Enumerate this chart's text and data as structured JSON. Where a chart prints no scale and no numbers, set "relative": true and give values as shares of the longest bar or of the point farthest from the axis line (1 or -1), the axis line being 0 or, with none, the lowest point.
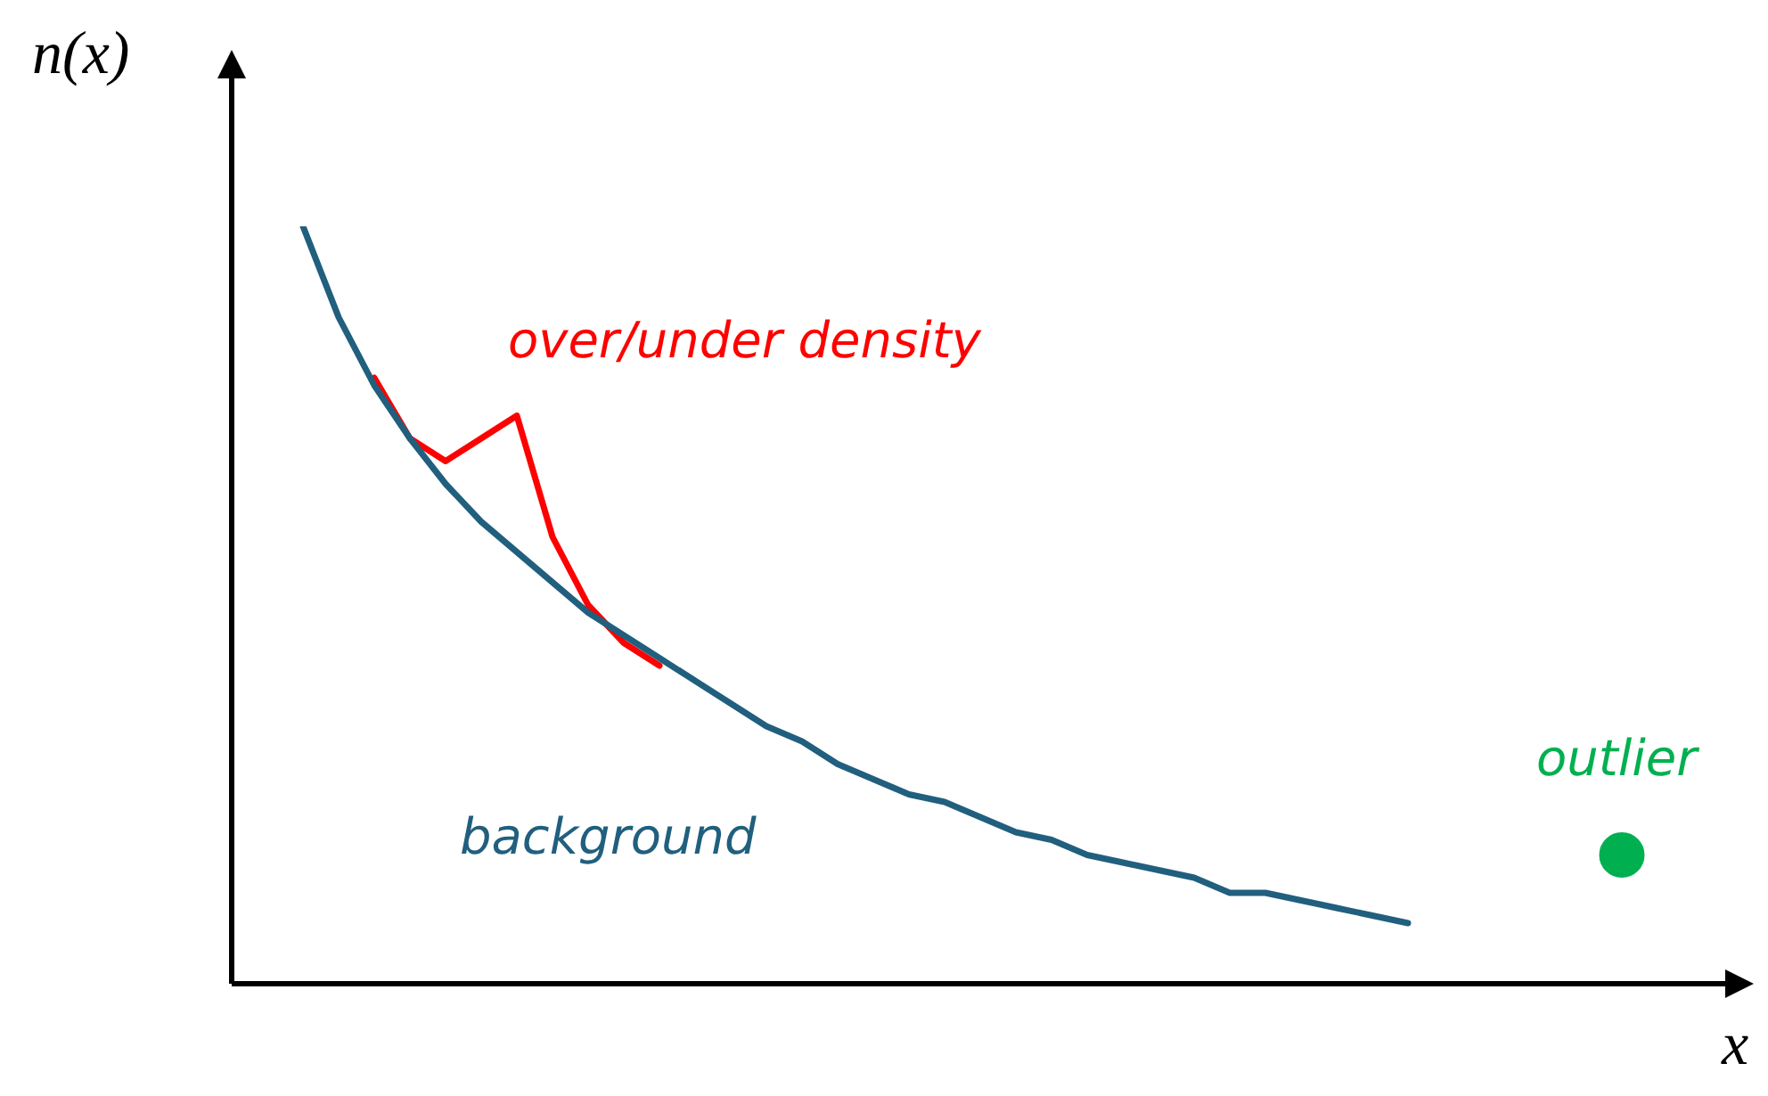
{
  "chart_data": {
    "type": "line",
    "relative": true,
    "xlabel": "x",
    "ylabel": "n(x)",
    "marker": "none",
    "line_style": "solid",
    "legend": false,
    "tick_labels": false,
    "categories": [
      null,
      null,
      null,
      null,
      null,
      null,
      null,
      null,
      null,
      null,
      null,
      null,
      null,
      null,
      null,
      null,
      null,
      null,
      null,
      null,
      null,
      null,
      null,
      null,
      null,
      null,
      null,
      null,
      null,
      null,
      null,
      null,
      null,
      null,
      null,
      null,
      null,
      null,
      null,
      null,
      null,
      null
    ],
    "series": [
      {
        "name": "background",
        "color": "#215f7e",
        "values": [
          null,
          null,
          1.0,
          0.88,
          0.79,
          0.72,
          0.66,
          0.61,
          0.57,
          0.53,
          0.49,
          0.46,
          0.43,
          0.4,
          0.37,
          0.34,
          0.32,
          0.29,
          0.27,
          0.25,
          0.24,
          0.22,
          0.2,
          0.19,
          0.17,
          0.16,
          0.15,
          0.14,
          0.12,
          0.12,
          0.11,
          0.1,
          0.09,
          0.08,
          null,
          null,
          null,
          null,
          null,
          null,
          null,
          null
        ]
      },
      {
        "name": "over/under density",
        "color": "#ff0000",
        "values": [
          null,
          null,
          null,
          null,
          0.8,
          0.72,
          0.69,
          0.72,
          0.75,
          0.59,
          0.5,
          0.45,
          0.42,
          null,
          null,
          null,
          null,
          null,
          null,
          null,
          null,
          null,
          null,
          null,
          null,
          null,
          null,
          null,
          null,
          null,
          null,
          null,
          null,
          null,
          null,
          null,
          null,
          null,
          null,
          null,
          null,
          null
        ]
      },
      {
        "name": "outlier",
        "marker": "circle",
        "color": "#00b050",
        "values": [
          null,
          null,
          null,
          null,
          null,
          null,
          null,
          null,
          null,
          null,
          null,
          null,
          null,
          null,
          null,
          null,
          null,
          null,
          null,
          null,
          null,
          null,
          null,
          null,
          null,
          null,
          null,
          null,
          null,
          null,
          null,
          null,
          null,
          null,
          null,
          null,
          null,
          null,
          null,
          0.17,
          null,
          null
        ]
      }
    ]
  }
}
